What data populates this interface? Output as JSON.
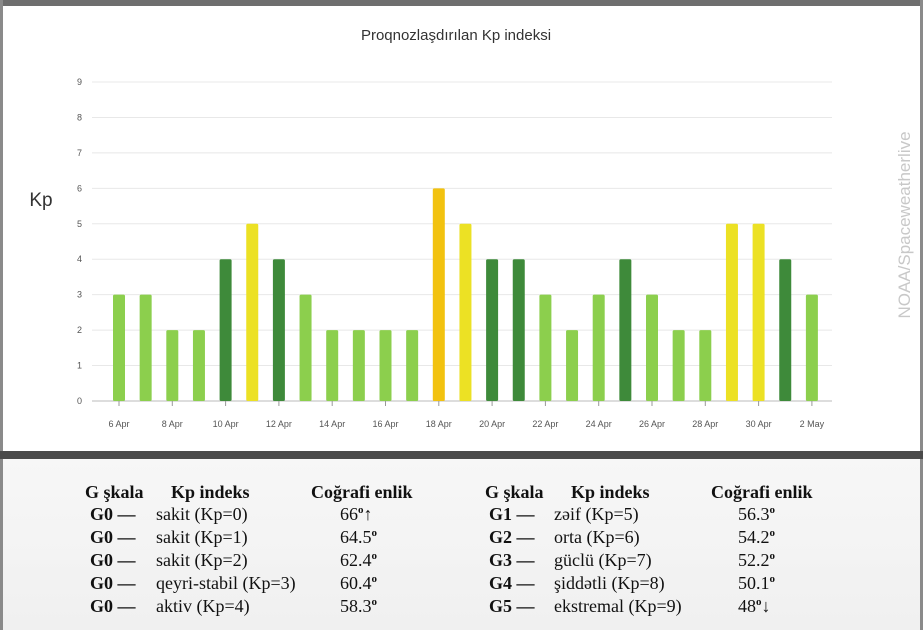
{
  "chart_data": {
    "type": "bar",
    "title": "Proqnozlaşdırılan Kp indeksi",
    "ylabel": "Kp",
    "xlabel": "",
    "ylim": [
      0,
      9
    ],
    "yticks": [
      "0",
      "1",
      "2",
      "3",
      "4",
      "5",
      "6",
      "7",
      "8",
      "9"
    ],
    "grid": true,
    "x_tick_labels": [
      "6 Apr",
      "8 Apr",
      "10 Apr",
      "12 Apr",
      "14 Apr",
      "16 Apr",
      "18 Apr",
      "20 Apr",
      "22 Apr",
      "24 Apr",
      "26 Apr",
      "28 Apr",
      "30 Apr",
      "2 May"
    ],
    "values": [
      3,
      3,
      2,
      2,
      4,
      5,
      4,
      3,
      2,
      2,
      2,
      2,
      6,
      5,
      4,
      4,
      3,
      2,
      3,
      4,
      3,
      2,
      2,
      5,
      5,
      4,
      3
    ],
    "colors": {
      "kp_0_3": "#8ccf4d",
      "kp_4": "#3e8a3a",
      "kp_5": "#ece124",
      "kp_6": "#f2c20f"
    }
  },
  "watermark": "NOAA/Spaceweatherlive",
  "legend": {
    "headers": {
      "g_scale": "G şkala",
      "kp_index": "Kp indeks",
      "geo_lat": "Coğrafi enlik"
    },
    "left_rows": [
      {
        "g": "G0 —",
        "desc": "sakit (Kp=0)",
        "lat": "66",
        "deg": "o",
        "suffix": "↑"
      },
      {
        "g": "G0 —",
        "desc": "sakit (Kp=1)",
        "lat": "64.5",
        "deg": "o",
        "suffix": ""
      },
      {
        "g": "G0 —",
        "desc": "sakit (Kp=2)",
        "lat": "62.4",
        "deg": "o",
        "suffix": ""
      },
      {
        "g": "G0 —",
        "desc": "qeyri-stabil (Kp=3)",
        "lat": "60.4",
        "deg": "o",
        "suffix": ""
      },
      {
        "g": "G0 —",
        "desc": "aktiv (Kp=4)",
        "lat": "58.3",
        "deg": "o",
        "suffix": ""
      }
    ],
    "right_rows": [
      {
        "g": "G1 —",
        "desc": "zəif (Kp=5)",
        "lat": "56.3",
        "deg": "o",
        "suffix": ""
      },
      {
        "g": "G2 —",
        "desc": "orta (Kp=6)",
        "lat": "54.2",
        "deg": "o",
        "suffix": ""
      },
      {
        "g": "G3 —",
        "desc": "güclü (Kp=7)",
        "lat": "52.2",
        "deg": "o",
        "suffix": ""
      },
      {
        "g": "G4 —",
        "desc": "şiddətli (Kp=8)",
        "lat": "50.1",
        "deg": "o",
        "suffix": ""
      },
      {
        "g": "G5 —",
        "desc": "ekstremal (Kp=9)",
        "lat": "48",
        "deg": "o",
        "suffix": "↓"
      }
    ]
  }
}
